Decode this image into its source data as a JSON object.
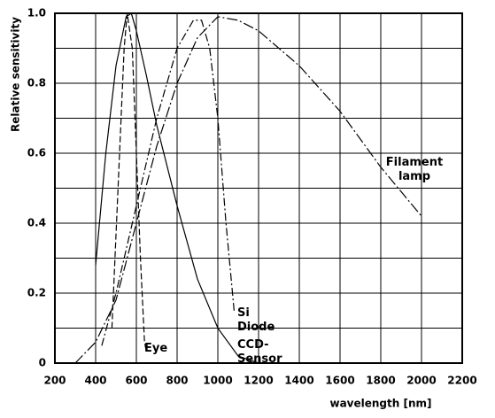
{
  "chart_data": {
    "type": "line",
    "x_label": "wavelength [nm]",
    "y_label": "Relative sensitivity",
    "xlim": [
      200,
      2200
    ],
    "ylim": [
      0,
      1
    ],
    "xticks": [
      200,
      400,
      600,
      800,
      1000,
      1200,
      1400,
      1600,
      1800,
      2000,
      2200
    ],
    "yticks": [
      0,
      {
        "value": 0.2,
        "label": "0.2"
      },
      {
        "value": 0.4,
        "label": "0.4"
      },
      0.6,
      0.8,
      {
        "value": 1,
        "label": "1.0"
      }
    ],
    "grid": true,
    "series": [
      {
        "name": "Eye",
        "color": "#000000",
        "dash": "7 3",
        "x": [
          480,
          510,
          540,
          555,
          580,
          600,
          620,
          640,
          650
        ],
        "values": [
          0.1,
          0.5,
          0.9,
          1.0,
          0.9,
          0.6,
          0.3,
          0.06,
          0.03
        ]
      },
      {
        "name": "Si Diode",
        "color": "#000000",
        "dash": "9 3 2 3",
        "x": [
          430,
          500,
          600,
          700,
          800,
          880,
          920,
          960,
          1000,
          1040,
          1080
        ],
        "values": [
          0.05,
          0.2,
          0.45,
          0.7,
          0.9,
          0.98,
          0.98,
          0.9,
          0.7,
          0.4,
          0.15
        ]
      },
      {
        "name": "CCD-Sensor",
        "color": "#000000",
        "dash": "none",
        "x": [
          400,
          450,
          500,
          550,
          575,
          600,
          650,
          700,
          800,
          900,
          1000,
          1100,
          1200
        ],
        "values": [
          0.28,
          0.6,
          0.85,
          0.99,
          1.0,
          0.95,
          0.82,
          0.68,
          0.45,
          0.24,
          0.1,
          0.02,
          0.0
        ]
      },
      {
        "name": "Filament lamp",
        "color": "#000000",
        "dash": "12 3 2 3",
        "x": [
          300,
          400,
          500,
          600,
          700,
          800,
          900,
          1000,
          1100,
          1200,
          1400,
          1600,
          1800,
          2000
        ],
        "values": [
          0,
          0.06,
          0.18,
          0.4,
          0.62,
          0.8,
          0.93,
          0.99,
          0.98,
          0.95,
          0.85,
          0.72,
          0.56,
          0.42
        ]
      }
    ]
  }
}
